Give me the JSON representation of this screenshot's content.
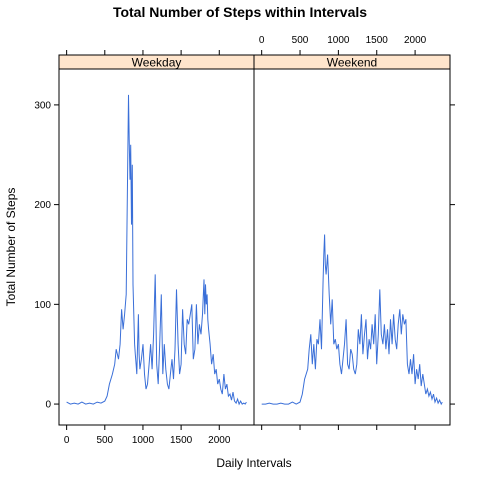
{
  "chart_data": {
    "type": "line",
    "title": "Total Number of Steps within Intervals",
    "xlabel": "Daily Intervals",
    "ylabel": "Total Number of Steps",
    "xlim": [
      -100,
      2455
    ],
    "ylim": [
      -21,
      336
    ],
    "x_ticks": [
      0,
      500,
      1000,
      1500,
      2000
    ],
    "y_ticks": [
      0,
      100,
      200,
      300
    ],
    "line_color": "#3a6fd8",
    "strip_color": "#ffe5cc",
    "panels": [
      {
        "name": "Weekday",
        "x": [
          0,
          50,
          100,
          150,
          200,
          250,
          300,
          350,
          400,
          450,
          500,
          530,
          560,
          600,
          630,
          650,
          680,
          700,
          720,
          740,
          760,
          780,
          800,
          810,
          820,
          830,
          840,
          850,
          860,
          870,
          880,
          890,
          900,
          910,
          920,
          930,
          940,
          950,
          960,
          980,
          1000,
          1020,
          1040,
          1060,
          1080,
          1100,
          1120,
          1140,
          1160,
          1180,
          1200,
          1220,
          1240,
          1260,
          1280,
          1300,
          1320,
          1340,
          1360,
          1380,
          1400,
          1420,
          1440,
          1460,
          1480,
          1500,
          1520,
          1540,
          1560,
          1580,
          1600,
          1620,
          1640,
          1660,
          1680,
          1700,
          1720,
          1740,
          1760,
          1780,
          1800,
          1810,
          1820,
          1830,
          1840,
          1850,
          1860,
          1880,
          1900,
          1920,
          1940,
          1960,
          1980,
          2000,
          2020,
          2040,
          2060,
          2080,
          2100,
          2120,
          2140,
          2160,
          2180,
          2200,
          2220,
          2240,
          2260,
          2280,
          2300,
          2320,
          2340,
          2355
        ],
        "y": [
          2,
          0,
          1,
          0,
          2,
          0,
          1,
          0,
          2,
          1,
          3,
          8,
          20,
          30,
          40,
          55,
          45,
          60,
          95,
          75,
          90,
          110,
          240,
          310,
          265,
          225,
          260,
          180,
          240,
          120,
          90,
          60,
          50,
          40,
          30,
          60,
          90,
          50,
          35,
          45,
          60,
          30,
          15,
          20,
          40,
          60,
          35,
          70,
          130,
          40,
          20,
          60,
          110,
          30,
          60,
          35,
          20,
          15,
          30,
          45,
          25,
          55,
          115,
          60,
          30,
          40,
          95,
          60,
          50,
          85,
          80,
          90,
          100,
          45,
          55,
          100,
          60,
          80,
          70,
          90,
          125,
          90,
          120,
          100,
          110,
          85,
          75,
          60,
          40,
          50,
          30,
          35,
          20,
          25,
          15,
          10,
          30,
          15,
          20,
          8,
          10,
          4,
          12,
          3,
          1,
          5,
          0,
          3,
          0,
          1,
          0,
          2
        ],
        "max": 315
      },
      {
        "name": "Weekend",
        "x": [
          0,
          50,
          100,
          150,
          200,
          250,
          300,
          350,
          400,
          450,
          500,
          530,
          560,
          600,
          620,
          640,
          660,
          680,
          700,
          720,
          740,
          760,
          780,
          800,
          810,
          820,
          830,
          840,
          860,
          880,
          900,
          920,
          940,
          960,
          980,
          1000,
          1020,
          1040,
          1060,
          1080,
          1100,
          1120,
          1140,
          1160,
          1180,
          1200,
          1220,
          1240,
          1260,
          1280,
          1300,
          1320,
          1340,
          1360,
          1380,
          1400,
          1420,
          1440,
          1460,
          1480,
          1500,
          1520,
          1540,
          1560,
          1580,
          1600,
          1620,
          1640,
          1660,
          1680,
          1700,
          1720,
          1740,
          1760,
          1780,
          1800,
          1820,
          1840,
          1860,
          1880,
          1900,
          1920,
          1940,
          1960,
          1980,
          2000,
          2020,
          2040,
          2060,
          2080,
          2100,
          2120,
          2140,
          2160,
          2180,
          2200,
          2220,
          2240,
          2260,
          2280,
          2300,
          2320,
          2340,
          2355
        ],
        "y": [
          0,
          0,
          1,
          0,
          0,
          1,
          0,
          0,
          2,
          0,
          2,
          10,
          25,
          35,
          55,
          70,
          40,
          60,
          35,
          65,
          60,
          85,
          55,
          120,
          150,
          170,
          140,
          130,
          150,
          110,
          80,
          105,
          60,
          65,
          55,
          60,
          40,
          30,
          45,
          60,
          85,
          40,
          35,
          55,
          50,
          35,
          30,
          40,
          75,
          60,
          90,
          50,
          70,
          85,
          45,
          65,
          55,
          80,
          60,
          90,
          40,
          70,
          115,
          70,
          60,
          80,
          55,
          75,
          50,
          85,
          60,
          90,
          65,
          55,
          80,
          95,
          70,
          90,
          80,
          85,
          40,
          30,
          45,
          30,
          50,
          20,
          35,
          25,
          40,
          18,
          30,
          20,
          10,
          15,
          8,
          12,
          5,
          10,
          2,
          6,
          1,
          4,
          0,
          2
        ],
        "max": 170
      }
    ]
  }
}
